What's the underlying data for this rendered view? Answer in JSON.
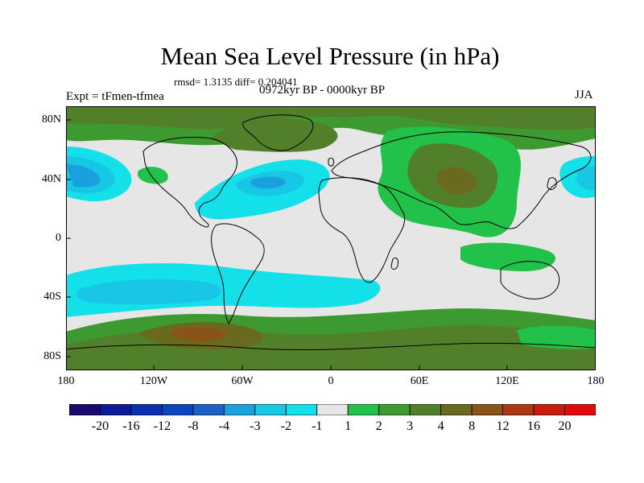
{
  "title": "Mean Sea Level Pressure (in hPa)",
  "stats": "rmsd= 1.3135 diff= 0.204041",
  "experiment": "Expt = tFmen-tfmea",
  "period": "0972kyr BP - 0000kyr BP",
  "season": "JJA",
  "lat_labels": [
    "80N",
    "40N",
    "0",
    "40S",
    "80S"
  ],
  "lon_labels": [
    "180",
    "120W",
    "60W",
    "0",
    "60E",
    "120E",
    "180"
  ],
  "colorbar": {
    "labels": [
      "-20",
      "-16",
      "-12",
      "-8",
      "-4",
      "-3",
      "-2",
      "-1",
      "1",
      "2",
      "3",
      "4",
      "8",
      "12",
      "16",
      "20"
    ],
    "colors": [
      "#1a0a6e",
      "#0d1a9a",
      "#0a2fb0",
      "#0b46bf",
      "#1d60c8",
      "#1aa0dc",
      "#18c6e6",
      "#14e0ea",
      "#e6e6e6",
      "#22c24a",
      "#3d9a30",
      "#52802a",
      "#6a6a1e",
      "#8a5418",
      "#aa3814",
      "#c81c0c",
      "#e00a0a"
    ]
  },
  "colors": {
    "land_outline": "#000000",
    "neutral": "#e6e6e6"
  }
}
